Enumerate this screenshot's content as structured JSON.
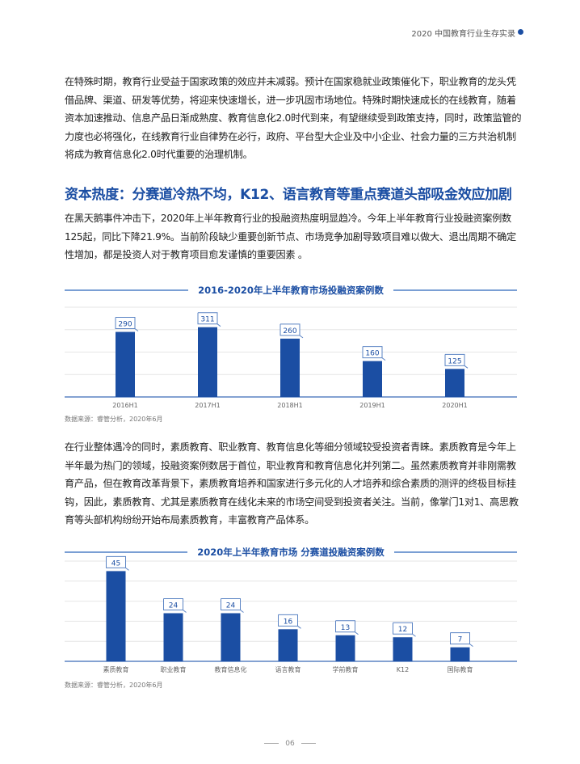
{
  "header": {
    "title": "2020 中国教育行业生存实录"
  },
  "paragraphs": [
    "在特殊时期，教育行业受益于国家政策的效应并未减弱。预计在国家稳就业政策催化下，职业教育的龙头凭借品牌、渠道、研发等优势，将迎来快速增长，进一步巩固市场地位。特殊时期快速成长的在线教育，随着资本加速推动、信息产品日渐成熟度、教育信息化2.0时代到来，有望继续受到政策支持，同时，政策监管的力度也必将强化，在线教育行业自律势在必行，政府、平台型大企业及中小企业、社会力量的三方共治机制将成为教育信息化2.0时代重要的治理机制。",
    "在黑天鹅事件冲击下，2020年上半年教育行业的投融资热度明显趋冷。今年上半年教育行业投融资案例数125起，同比下降21.9%。当前阶段缺少重要创新节点、市场竞争加剧导致项目难以做大、退出周期不确定性增加，都是投资人对于教育项目愈发谨慎的重要因素 。",
    "在行业整体遇冷的同时，素质教育、职业教育、教育信息化等细分领域较受投资者青睐。素质教育是今年上半年最为热门的领域，投融资案例数居于首位，职业教育和教育信息化并列第二。虽然素质教育并非刚需教育产品，但在教育改革背景下，素质教育培养和国家进行多元化的人才培养和综合素质的测评的终极目标挂钩，因此，素质教育、尤其是素质教育在线化未来的市场空间受到投资者关注。当前，像掌门1对1、高思教育等头部机构纷纷开始布局素质教育，丰富教育产品体系。"
  ],
  "section_heading": "资本热度：分赛道冷热不均，K12、语言教育等重点赛道头部吸金效应加剧",
  "chart_data": [
    {
      "type": "bar",
      "title": "2016-2020年上半年教育市场投融资案例数",
      "categories": [
        "2016H1",
        "2017H1",
        "2018H1",
        "2019H1",
        "2020H1"
      ],
      "values": [
        290,
        311,
        260,
        160,
        125
      ],
      "ylim": [
        0,
        400
      ],
      "grid": true,
      "source": "数据来源：睿管分析，2020年6月",
      "color": "#1b4ea3"
    },
    {
      "type": "bar",
      "title": "2020年上半年教育市场 分赛道投融资案例数",
      "categories": [
        "素质教育",
        "职业教育",
        "教育信息化",
        "语言教育",
        "学前教育",
        "K12",
        "国际教育"
      ],
      "values": [
        45,
        24,
        24,
        16,
        13,
        12,
        7
      ],
      "ylim": [
        0,
        50
      ],
      "grid": true,
      "source": "数据来源：睿管分析，2020年6月",
      "color": "#1b4ea3"
    }
  ],
  "footer": {
    "page": "06"
  }
}
